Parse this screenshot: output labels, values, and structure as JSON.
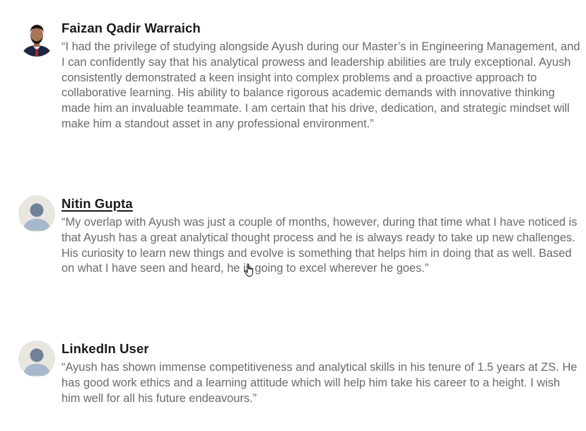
{
  "testimonials": [
    {
      "name": "Faizan Qadir Warraich",
      "avatar": "photo-avatar",
      "quote": "“I had the privilege of studying alongside Ayush during our Master’s in Engineering Management, and I can confidently say that his analytical prowess and leadership abilities are truly exceptional. Ayush consistently demonstrated a keen insight into complex problems and a proactive approach to collaborative learning. His ability to balance rigorous academic demands with innovative thinking made him an invaluable teammate. I am certain that his drive, dedication, and strategic mindset will make him a standout asset in any professional environment.”"
    },
    {
      "name": "Nitin Gupta",
      "avatar": "default-user-avatar",
      "quote": "“My overlap with Ayush was just a couple of months, however, during that time what I have noticed is that Ayush has a great analytical thought process and he is always ready to take up new challenges. His curiosity to learn new things and evolve is something that helps him in doing that as well. Based on what I have seen and heard, he is going to excel wherever he goes.”"
    },
    {
      "name": "LinkedIn User",
      "avatar": "default-user-avatar",
      "quote": "“Ayush has shown immense competitiveness and analytical skills in his tenure of 1.5 years at ZS. He has good work ethics and a learning attitude which will help him take his career to a height. I wish him well for all his future endeavours.”"
    }
  ],
  "colors": {
    "name": "#1a1a1a",
    "quote": "#6a6a6a",
    "avatar_bg": "#e9e6e1",
    "avatar_figure": "#8fa4bb"
  },
  "cursor": "hand-pointer-icon"
}
